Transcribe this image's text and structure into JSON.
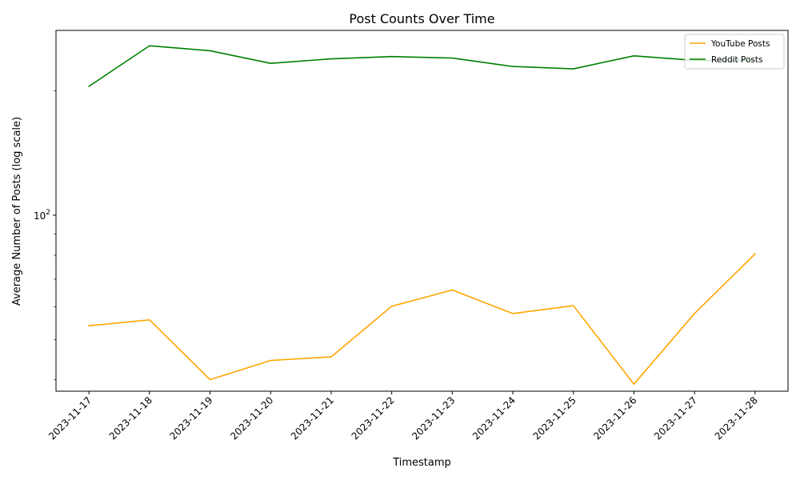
{
  "chart_data": {
    "type": "line",
    "title": "Post Counts Over Time",
    "xlabel": "Timestamp",
    "ylabel": "Average Number of Posts (log scale)",
    "y_scale": "log",
    "ylim": [
      37.5,
      280
    ],
    "y_major_tick": {
      "value": 100,
      "label_base": "10",
      "label_exponent": "2"
    },
    "grid": false,
    "legend_position": "top-right",
    "categories": [
      "2023-11-17",
      "2023-11-18",
      "2023-11-19",
      "2023-11-20",
      "2023-11-21",
      "2023-11-22",
      "2023-11-23",
      "2023-11-24",
      "2023-11-25",
      "2023-11-26",
      "2023-11-27",
      "2023-11-28"
    ],
    "series": [
      {
        "name": "YouTube Posts",
        "color": "#FFA500",
        "values": [
          54.0,
          55.8,
          40.0,
          44.5,
          45.4,
          60.2,
          65.9,
          57.8,
          60.4,
          39.0,
          57.8,
          80.6
        ]
      },
      {
        "name": "Reddit Posts",
        "color": "#008000",
        "values": [
          205.0,
          257.0,
          250.0,
          233.0,
          239.0,
          242.0,
          240.0,
          229.0,
          226.0,
          243.0,
          237.0,
          237.0
        ]
      }
    ]
  }
}
